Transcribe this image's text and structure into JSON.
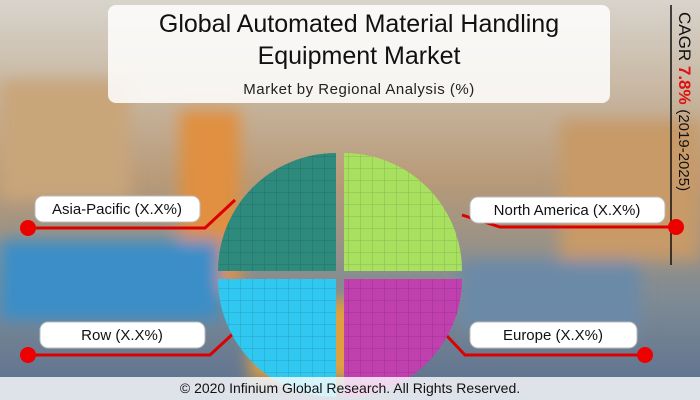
{
  "header": {
    "title_lines": [
      "Global Automated Material Handling",
      "Equipment Market"
    ],
    "subtitle": "Market by Regional Analysis (%)"
  },
  "cagr": {
    "label": "CAGR",
    "value": "7.8%",
    "period": "(2019-2025)"
  },
  "regions": [
    "Asia-Pacific (X.X%)",
    "North America (X.X%)",
    "Row (X.X%)",
    "Europe (X.X%)"
  ],
  "footer": "© 2020 Infinium Global Research. All Rights Reserved."
}
